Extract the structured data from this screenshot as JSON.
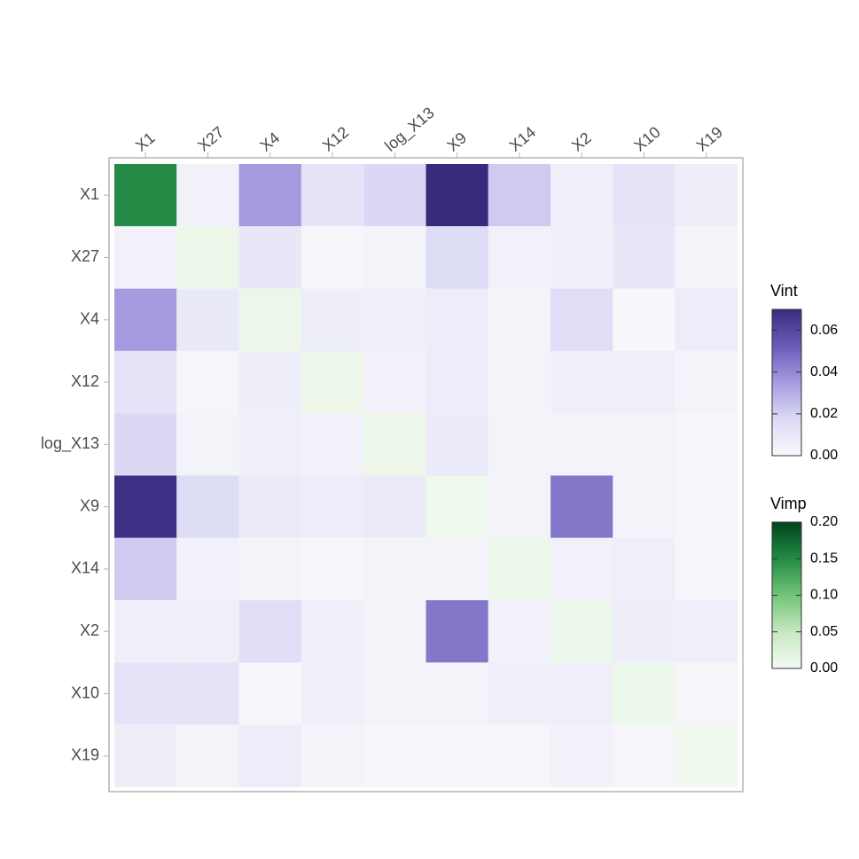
{
  "chart_data": {
    "type": "heatmap",
    "x_categories": [
      "X1",
      "X27",
      "X4",
      "X12",
      "log_X13",
      "X9",
      "X14",
      "X2",
      "X10",
      "X19"
    ],
    "y_categories": [
      "X1",
      "X27",
      "X4",
      "X12",
      "log_X13",
      "X9",
      "X14",
      "X2",
      "X10",
      "X19"
    ],
    "values": [
      [
        0.15,
        0.004,
        0.035,
        0.012,
        0.018,
        0.07,
        0.022,
        0.005,
        0.012,
        0.006
      ],
      [
        0.004,
        0.01,
        0.01,
        0.002,
        0.003,
        0.016,
        0.004,
        0.005,
        0.01,
        0.003
      ],
      [
        0.035,
        0.009,
        0.01,
        0.006,
        0.005,
        0.007,
        0.003,
        0.015,
        0.001,
        0.007
      ],
      [
        0.012,
        0.002,
        0.006,
        0.01,
        0.004,
        0.007,
        0.003,
        0.005,
        0.005,
        0.003
      ],
      [
        0.018,
        0.003,
        0.005,
        0.004,
        0.01,
        0.008,
        0.003,
        0.003,
        0.003,
        0.002
      ],
      [
        0.068,
        0.016,
        0.008,
        0.007,
        0.008,
        0.006,
        0.003,
        0.045,
        0.003,
        0.002
      ],
      [
        0.022,
        0.004,
        0.003,
        0.002,
        0.003,
        0.003,
        0.01,
        0.004,
        0.005,
        0.002
      ],
      [
        0.005,
        0.005,
        0.015,
        0.005,
        0.003,
        0.045,
        0.004,
        0.008,
        0.006,
        0.005
      ],
      [
        0.012,
        0.012,
        0.001,
        0.005,
        0.003,
        0.003,
        0.005,
        0.005,
        0.008,
        0.002
      ],
      [
        0.006,
        0.003,
        0.007,
        0.003,
        0.002,
        0.002,
        0.002,
        0.004,
        0.002,
        0.006
      ]
    ],
    "legends": [
      {
        "title": "Vint",
        "lim": [
          0,
          0.07
        ],
        "ticks": [
          {
            "value": 0,
            "label": "0.00"
          },
          {
            "value": 0.02,
            "label": "0.02"
          },
          {
            "value": 0.04,
            "label": "0.04"
          },
          {
            "value": 0.06,
            "label": "0.06"
          }
        ],
        "colors": [
          "#f8f8fb",
          "#dcdaf5",
          "#a59ce0",
          "#6a5bb8",
          "#3a2a7e"
        ]
      },
      {
        "title": "Vimp",
        "lim": [
          0,
          0.2
        ],
        "ticks": [
          {
            "value": 0,
            "label": "0.00"
          },
          {
            "value": 0.05,
            "label": "0.05"
          },
          {
            "value": 0.1,
            "label": "0.10"
          },
          {
            "value": 0.15,
            "label": "0.15"
          },
          {
            "value": 0.2,
            "label": "0.20"
          }
        ],
        "colors": [
          "#f5fbf4",
          "#c6e8c0",
          "#73c476",
          "#238b45",
          "#00441b"
        ]
      }
    ]
  }
}
